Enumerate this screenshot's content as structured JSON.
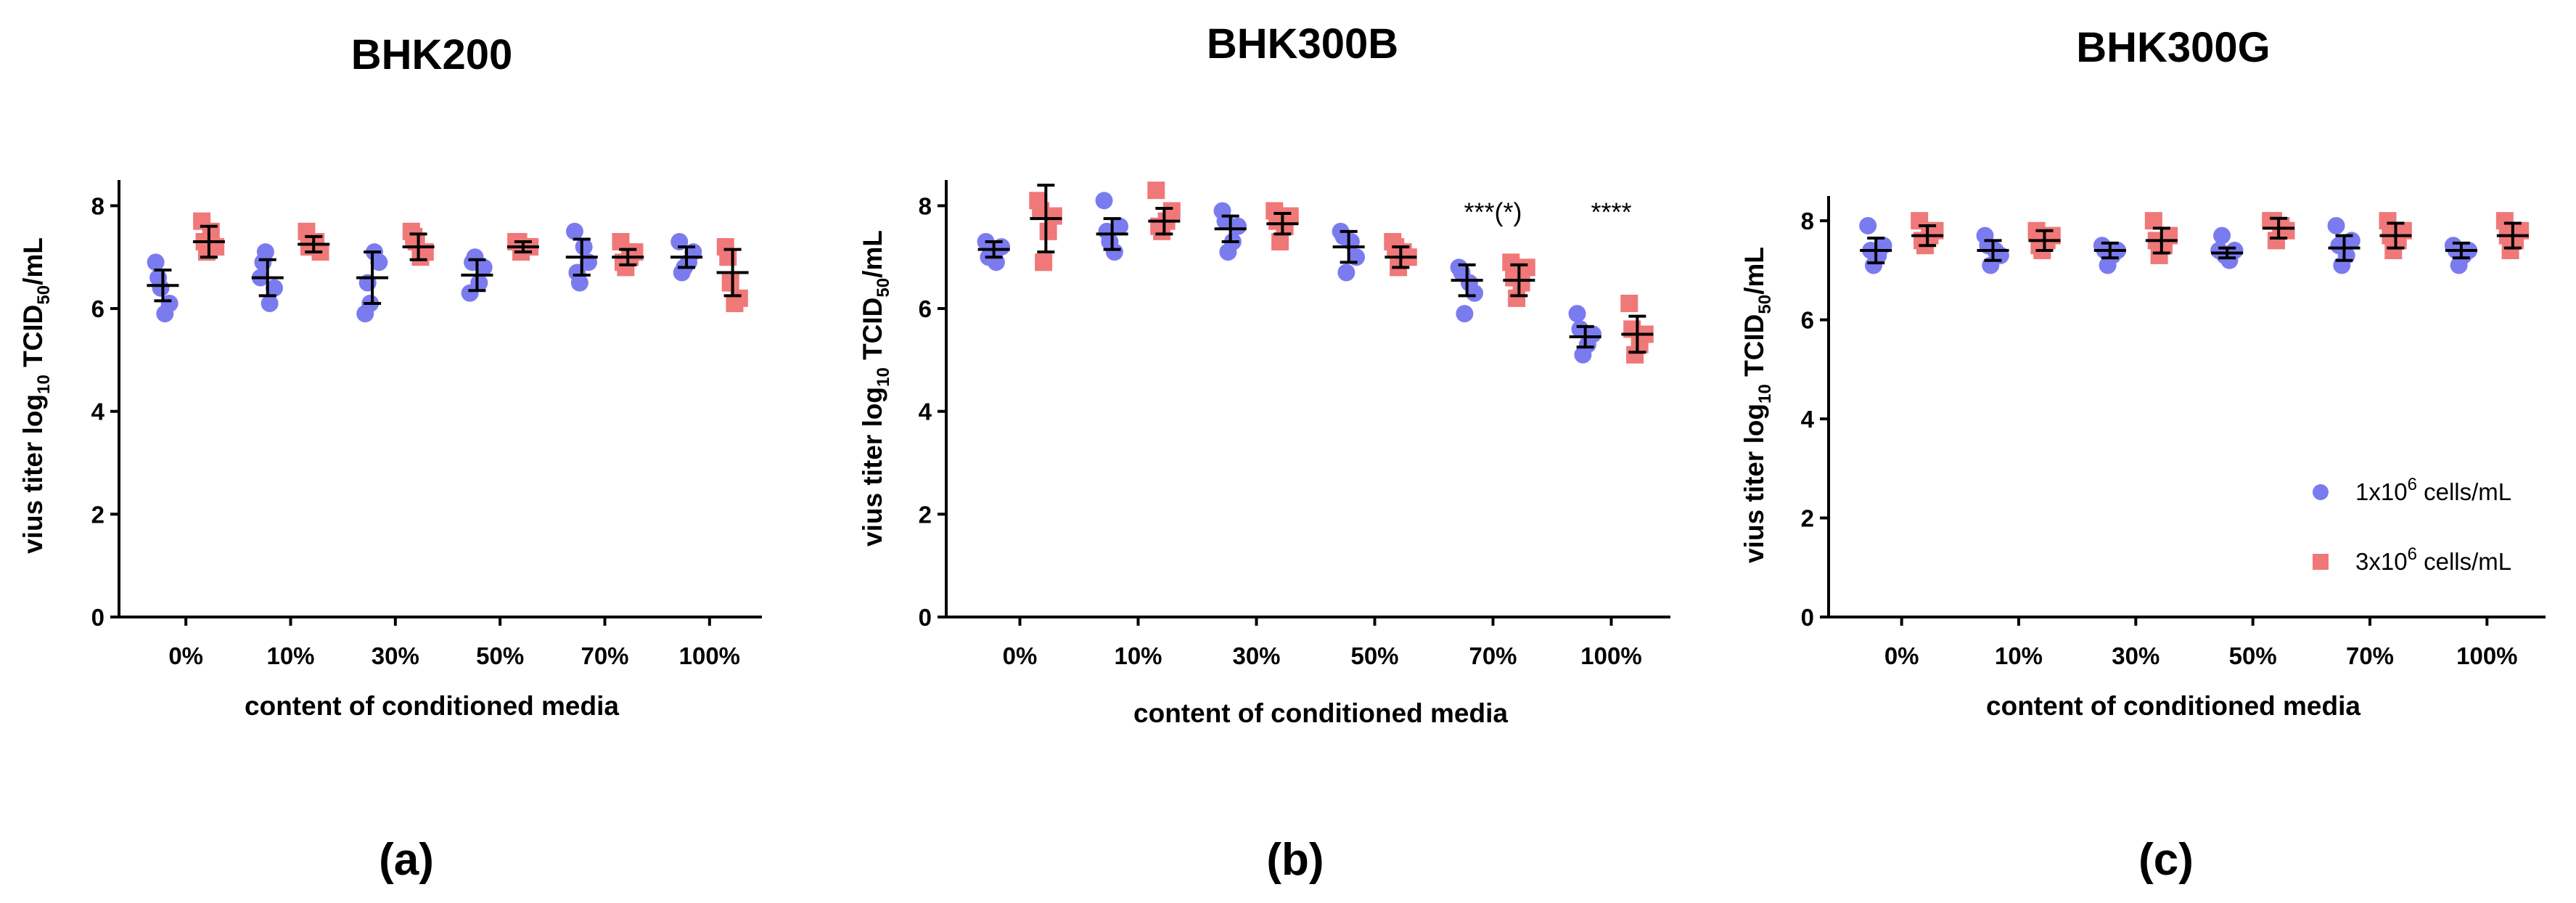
{
  "chart_data": [
    {
      "type": "scatter",
      "title": "BHK200",
      "panel_label": "(a)",
      "xlabel": "content of conditioned media",
      "ylabel": {
        "pre": "vius titer log",
        "sub1": "10",
        "mid": " TCID",
        "sub2": "50",
        "post": "/mL"
      },
      "ylim": [
        0,
        8.5
      ],
      "yticks": [
        0,
        2,
        4,
        6,
        8
      ],
      "categories": [
        "0%",
        "10%",
        "30%",
        "50%",
        "70%",
        "100%"
      ],
      "series": [
        {
          "name": "1x10^6 cells/mL",
          "color": "#7b7bf0",
          "marker": "circle",
          "points": [
            [
              6.9,
              6.4,
              5.9,
              6.1,
              6.6
            ],
            [
              6.6,
              7.1,
              6.1,
              6.4,
              6.9
            ],
            [
              5.9,
              6.1,
              7.1,
              6.9,
              6.5
            ],
            [
              6.3,
              7.0,
              6.5,
              6.8,
              6.9
            ],
            [
              7.5,
              6.5,
              7.2,
              6.9,
              6.7
            ],
            [
              7.3,
              6.8,
              6.9,
              7.1,
              6.7
            ]
          ],
          "means": [
            6.45,
            6.6,
            6.6,
            6.65,
            7.0,
            7.0
          ],
          "sds": [
            0.3,
            0.35,
            0.5,
            0.3,
            0.35,
            0.2
          ]
        },
        {
          "name": "3x10^6 cells/mL",
          "color": "#f07878",
          "marker": "square",
          "points": [
            [
              7.7,
              7.1,
              7.5,
              7.2,
              7.3
            ],
            [
              7.5,
              7.2,
              7.3,
              7.1,
              7.2
            ],
            [
              7.5,
              7.3,
              7.0,
              7.1,
              7.4
            ],
            [
              7.3,
              7.1,
              7.2,
              7.2,
              7.3
            ],
            [
              7.3,
              6.8,
              7.0,
              7.1,
              6.9
            ],
            [
              7.2,
              6.5,
              6.1,
              6.2,
              7.0
            ]
          ],
          "means": [
            7.3,
            7.25,
            7.2,
            7.2,
            7.0,
            6.7
          ],
          "sds": [
            0.3,
            0.15,
            0.25,
            0.1,
            0.15,
            0.45
          ]
        }
      ],
      "annotations": []
    },
    {
      "type": "scatter",
      "title": "BHK300B",
      "panel_label": "(b)",
      "xlabel": "content of conditioned media",
      "ylabel": {
        "pre": "vius titer log",
        "sub1": "10",
        "mid": " TCID",
        "sub2": "50",
        "post": "/mL"
      },
      "ylim": [
        0,
        8.5
      ],
      "yticks": [
        0,
        2,
        4,
        6,
        8
      ],
      "categories": [
        "0%",
        "10%",
        "30%",
        "50%",
        "70%",
        "100%"
      ],
      "series": [
        {
          "name": "1x10^6 cells/mL",
          "color": "#7b7bf0",
          "marker": "circle",
          "points": [
            [
              7.3,
              7.1,
              6.9,
              7.2,
              7.0
            ],
            [
              8.1,
              7.3,
              7.1,
              7.6,
              7.5
            ],
            [
              7.9,
              7.1,
              7.3,
              7.6,
              7.7
            ],
            [
              7.5,
              6.7,
              7.3,
              7.0,
              7.4
            ],
            [
              6.8,
              5.9,
              6.5,
              6.3,
              6.7
            ],
            [
              5.9,
              5.1,
              5.3,
              5.5,
              5.6
            ]
          ],
          "means": [
            7.15,
            7.45,
            7.55,
            7.2,
            6.55,
            5.45
          ],
          "sds": [
            0.15,
            0.3,
            0.25,
            0.3,
            0.3,
            0.2
          ]
        },
        {
          "name": "3x10^6 cells/mL",
          "color": "#f07878",
          "marker": "square",
          "points": [
            [
              8.1,
              6.9,
              7.5,
              7.8,
              7.9
            ],
            [
              8.3,
              7.5,
              7.7,
              7.9,
              7.6
            ],
            [
              7.9,
              7.3,
              7.6,
              7.8,
              7.7
            ],
            [
              7.3,
              6.8,
              7.1,
              7.0,
              7.2
            ],
            [
              6.9,
              6.2,
              6.5,
              6.8,
              6.6
            ],
            [
              6.1,
              5.1,
              5.3,
              5.5,
              5.6
            ]
          ],
          "means": [
            7.75,
            7.7,
            7.65,
            7.0,
            6.55,
            5.5
          ],
          "sds": [
            0.65,
            0.25,
            0.2,
            0.2,
            0.3,
            0.35
          ]
        }
      ],
      "annotations": [
        {
          "category_index": 4,
          "y": 7.7,
          "text": "***(*)"
        },
        {
          "category_index": 5,
          "y": 7.7,
          "text": "****"
        }
      ]
    },
    {
      "type": "scatter",
      "title": "BHK300G",
      "panel_label": "(c)",
      "xlabel": "content of conditioned media",
      "ylabel": {
        "pre": "vius titer log",
        "sub1": "10",
        "mid": " TCID",
        "sub2": "50",
        "post": "/mL"
      },
      "ylim": [
        0,
        8.5
      ],
      "yticks": [
        0,
        2,
        4,
        6,
        8
      ],
      "categories": [
        "0%",
        "10%",
        "30%",
        "50%",
        "70%",
        "100%"
      ],
      "series": [
        {
          "name": "1x10^6 cells/mL",
          "color": "#7b7bf0",
          "marker": "circle",
          "points": [
            [
              7.9,
              7.1,
              7.3,
              7.5,
              7.4
            ],
            [
              7.7,
              7.1,
              7.4,
              7.3,
              7.5
            ],
            [
              7.5,
              7.1,
              7.3,
              7.4,
              7.4
            ],
            [
              7.4,
              7.3,
              7.2,
              7.4,
              7.7
            ],
            [
              7.9,
              7.1,
              7.3,
              7.6,
              7.5
            ],
            [
              7.5,
              7.1,
              7.3,
              7.4,
              7.4
            ]
          ],
          "means": [
            7.4,
            7.4,
            7.4,
            7.35,
            7.45,
            7.4
          ],
          "sds": [
            0.25,
            0.2,
            0.15,
            0.1,
            0.25,
            0.15
          ]
        },
        {
          "name": "3x10^6 cells/mL",
          "color": "#f07878",
          "marker": "square",
          "points": [
            [
              8.0,
              7.5,
              7.7,
              7.8,
              7.6
            ],
            [
              7.8,
              7.4,
              7.6,
              7.7,
              7.5
            ],
            [
              8.0,
              7.3,
              7.5,
              7.7,
              7.6
            ],
            [
              8.0,
              7.6,
              7.9,
              7.8,
              8.0
            ],
            [
              8.0,
              7.4,
              7.6,
              7.8,
              7.7
            ],
            [
              8.0,
              7.4,
              7.6,
              7.8,
              7.7
            ]
          ],
          "means": [
            7.7,
            7.6,
            7.6,
            7.85,
            7.7,
            7.7
          ],
          "sds": [
            0.2,
            0.2,
            0.25,
            0.2,
            0.25,
            0.25
          ]
        }
      ],
      "annotations": [],
      "legend": {
        "placement": "bottom-right",
        "entries": [
          {
            "pre": "1x10",
            "sup": "6",
            "post": " cells/mL",
            "color": "#7b7bf0",
            "marker": "circle"
          },
          {
            "pre": "3x10",
            "sup": "6",
            "post": " cells/mL",
            "color": "#f07878",
            "marker": "square"
          }
        ]
      }
    }
  ]
}
